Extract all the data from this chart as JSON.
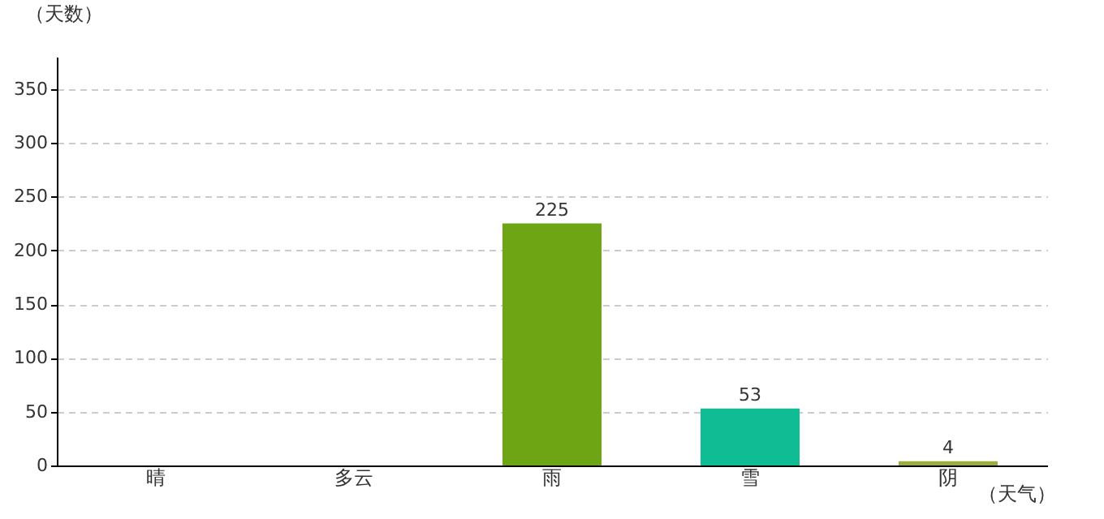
{
  "chart_data": {
    "type": "bar",
    "xlabel": "（天气）",
    "ylabel": "（天数）",
    "categories": [
      "晴",
      "多云",
      "雨",
      "雪",
      "阴"
    ],
    "values": [
      null,
      null,
      225,
      53,
      4
    ],
    "colors": [
      "#8b1029",
      "#aecbd5",
      "#6ea514",
      "#10bc94",
      "#9aae3f"
    ],
    "ylim": [
      0,
      380
    ],
    "yticks": [
      0,
      50,
      100,
      150,
      200,
      250,
      300,
      350
    ],
    "grid": "y",
    "data_labels": true
  }
}
